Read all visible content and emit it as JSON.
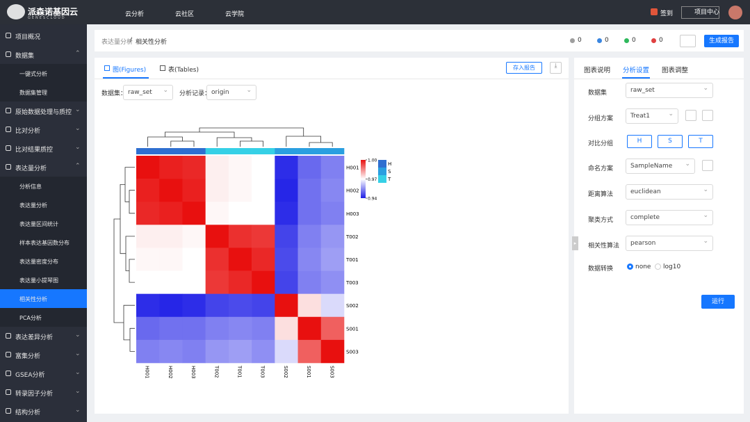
{
  "header": {
    "logo": "派森诺基因云",
    "logo_sub": "GENESCLOUD",
    "nav": [
      "云分析",
      "云社区",
      "云学院"
    ],
    "checkin": "签到",
    "project_center": "项目中心"
  },
  "nav": [
    {
      "label": "项目概况"
    },
    {
      "label": "数据集",
      "children": [
        {
          "label": "一键式分析"
        },
        {
          "label": "数据集管理"
        }
      ]
    },
    {
      "label": "原始数据处理与质控"
    },
    {
      "label": "比对分析"
    },
    {
      "label": "比对结果质控"
    },
    {
      "label": "表达量分析",
      "children": [
        {
          "label": "分析信息"
        },
        {
          "label": "表达量分析"
        },
        {
          "label": "表达量区间统计"
        },
        {
          "label": "样本表达基因数分布"
        },
        {
          "label": "表达量密度分布"
        },
        {
          "label": "表达量小提琴图"
        },
        {
          "label": "相关性分析",
          "active": true
        },
        {
          "label": "PCA分析"
        }
      ]
    },
    {
      "label": "表达差异分析"
    },
    {
      "label": "富集分析"
    },
    {
      "label": "GSEA分析"
    },
    {
      "label": "转录因子分析"
    },
    {
      "label": "结构分析"
    }
  ],
  "breadcrumb": [
    "表达量分析",
    "相关性分析"
  ],
  "status": [
    {
      "color": "#9e9e9e",
      "count": 0
    },
    {
      "color": "#3a86e0",
      "count": 0
    },
    {
      "color": "#2eb85c",
      "count": 0
    },
    {
      "color": "#e04040",
      "count": 0
    }
  ],
  "report_button": "生成报告",
  "tabs": [
    "图(Figures)",
    "表(Tables)"
  ],
  "save_button": "存入报告",
  "filters": [
    {
      "label": "数据集：",
      "value": "raw_set"
    },
    {
      "label": "分析记录：",
      "value": "origin"
    }
  ],
  "chart_data": {
    "type": "heatmap",
    "x": [
      "H001",
      "H002",
      "H003",
      "T002",
      "T001",
      "T003",
      "S002",
      "S001",
      "S003"
    ],
    "y": [
      "H001",
      "H002",
      "H003",
      "T002",
      "T001",
      "T003",
      "S002",
      "S001",
      "S003"
    ],
    "values": [
      [
        1,
        0.998,
        0.997,
        0.972,
        0.971,
        0.97,
        0.942,
        0.95,
        0.953
      ],
      [
        0.998,
        1,
        0.998,
        0.972,
        0.971,
        0.97,
        0.941,
        0.951,
        0.954
      ],
      [
        0.997,
        0.998,
        1,
        0.971,
        0.97,
        0.97,
        0.942,
        0.951,
        0.953
      ],
      [
        0.972,
        0.972,
        0.971,
        1,
        0.996,
        0.995,
        0.945,
        0.953,
        0.956
      ],
      [
        0.971,
        0.971,
        0.97,
        0.996,
        1,
        0.997,
        0.946,
        0.954,
        0.957
      ],
      [
        0.97,
        0.97,
        0.97,
        0.995,
        0.997,
        1,
        0.945,
        0.953,
        0.955
      ],
      [
        0.942,
        0.941,
        0.942,
        0.945,
        0.946,
        0.945,
        1,
        0.974,
        0.965
      ],
      [
        0.95,
        0.951,
        0.951,
        0.953,
        0.954,
        0.953,
        0.974,
        1,
        0.99
      ],
      [
        0.953,
        0.954,
        0.953,
        0.956,
        0.957,
        0.955,
        0.965,
        0.99,
        1
      ]
    ],
    "zlim": [
      0.94,
      1
    ],
    "zticks": [
      {
        "value": 1,
        "label": "1.00"
      },
      0.97,
      0.94
    ],
    "colors": [
      "#1e1ee6",
      "#ffffff",
      "#e8100f"
    ],
    "groups": [
      {
        "name": "H",
        "color": "#2f6fd0"
      },
      {
        "name": "S",
        "color": "#2a9fe0"
      },
      {
        "name": "T",
        "color": "#36d0e6"
      }
    ]
  },
  "panel": {
    "tabs": [
      "图表说明",
      "分析设置",
      "图表调整"
    ],
    "fields": [
      {
        "label": "数据集",
        "value": "raw_set"
      },
      {
        "label": "分组方案",
        "value": "Treat1"
      },
      {
        "label": "对比分组",
        "options": [
          "H",
          "S",
          "T"
        ]
      },
      {
        "label": "命名方案",
        "value": "SampleName"
      },
      {
        "label": "距离算法",
        "value": "euclidean"
      },
      {
        "label": "聚类方式",
        "value": "complete"
      },
      {
        "label": "相关性算法",
        "value": "pearson"
      },
      {
        "label": "数据转换",
        "radio": [
          "none",
          "log10"
        ]
      }
    ],
    "run": "运行"
  }
}
